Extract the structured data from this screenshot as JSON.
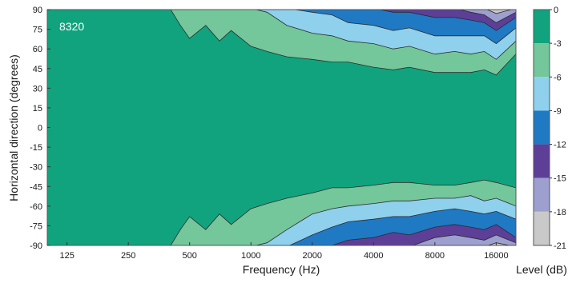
{
  "chart_data": {
    "type": "heatmap",
    "subtype": "filled-contour",
    "title": "",
    "inset_label": "8320",
    "xlabel": "Frequency (Hz)",
    "ylabel": "Horizontal direction (degrees)",
    "x_scale": "log",
    "xlim": [
      100,
      20000
    ],
    "ylim": [
      -90,
      90
    ],
    "x_ticks": [
      125,
      250,
      500,
      1000,
      2000,
      4000,
      8000,
      16000
    ],
    "x_tick_labels": [
      "125",
      "250",
      "500",
      "1000",
      "2000",
      "4000",
      "8000",
      "16000"
    ],
    "y_ticks": [
      -90,
      -75,
      -60,
      -45,
      -30,
      -15,
      0,
      15,
      30,
      45,
      60,
      75,
      90
    ],
    "y_tick_labels": [
      "-90",
      "-75",
      "-60",
      "-45",
      "-30",
      "-15",
      "0",
      "15",
      "30",
      "45",
      "60",
      "75",
      "90"
    ],
    "colorbar": {
      "label": "Level (dB)",
      "ticks": [
        0,
        -3,
        -6,
        -9,
        -12,
        -15,
        -18,
        -21
      ],
      "tick_labels": [
        "0",
        "-3",
        "-6",
        "-9",
        "-12",
        "-15",
        "-18",
        "-21"
      ],
      "levels": [
        {
          "range": "0 to -3",
          "color": "#11a37d"
        },
        {
          "range": "-3 to -6",
          "color": "#74c69b"
        },
        {
          "range": "-6 to -9",
          "color": "#8fd0ec"
        },
        {
          "range": "-9 to -12",
          "color": "#1f79c3"
        },
        {
          "range": "-12 to -15",
          "color": "#5d3f98"
        },
        {
          "range": "-15 to -18",
          "color": "#9d9fce"
        },
        {
          "range": "-18 to -21",
          "color": "#c9c9c9"
        }
      ]
    },
    "contours": {
      "frequencies": [
        100,
        400,
        450,
        500,
        600,
        700,
        800,
        1000,
        1200,
        1500,
        2000,
        2500,
        3000,
        4000,
        5000,
        6000,
        8000,
        10000,
        12000,
        14000,
        16000,
        20000
      ],
      "level_-3_upper": [
        91,
        91,
        78,
        68,
        78,
        66,
        74,
        62,
        58,
        54,
        52,
        50,
        50,
        46,
        44,
        46,
        42,
        42,
        42,
        44,
        40,
        56
      ],
      "level_-6_upper": [
        91,
        91,
        91,
        91,
        91,
        91,
        91,
        91,
        88,
        78,
        72,
        70,
        66,
        64,
        60,
        62,
        56,
        58,
        56,
        58,
        52,
        66
      ],
      "level_-9_upper": [
        91,
        91,
        91,
        91,
        91,
        91,
        91,
        91,
        91,
        91,
        88,
        86,
        80,
        78,
        74,
        76,
        70,
        70,
        70,
        70,
        64,
        76
      ],
      "level_-12_upper": [
        91,
        91,
        91,
        91,
        91,
        91,
        91,
        91,
        91,
        91,
        91,
        91,
        91,
        91,
        88,
        88,
        84,
        84,
        82,
        80,
        74,
        84
      ],
      "level_-15_upper": [
        91,
        91,
        91,
        91,
        91,
        91,
        91,
        91,
        91,
        91,
        91,
        91,
        91,
        91,
        91,
        91,
        91,
        91,
        88,
        86,
        80,
        88
      ],
      "level_-18_upper": [
        91,
        91,
        91,
        91,
        91,
        91,
        91,
        91,
        91,
        91,
        91,
        91,
        91,
        91,
        91,
        91,
        91,
        91,
        91,
        91,
        87,
        91
      ],
      "level_-3_lower": [
        -91,
        -91,
        -78,
        -68,
        -78,
        -66,
        -74,
        -62,
        -58,
        -54,
        -50,
        -46,
        -46,
        -44,
        -42,
        -42,
        -44,
        -44,
        -42,
        -40,
        -42,
        -46
      ],
      "level_-6_lower": [
        -91,
        -91,
        -91,
        -91,
        -91,
        -91,
        -91,
        -91,
        -88,
        -78,
        -66,
        -62,
        -60,
        -58,
        -56,
        -56,
        -54,
        -54,
        -52,
        -56,
        -54,
        -60
      ],
      "level_-9_lower": [
        -91,
        -91,
        -91,
        -91,
        -91,
        -91,
        -91,
        -91,
        -91,
        -91,
        -82,
        -76,
        -72,
        -70,
        -68,
        -68,
        -64,
        -62,
        -64,
        -66,
        -64,
        -70
      ],
      "level_-12_lower": [
        -91,
        -91,
        -91,
        -91,
        -91,
        -91,
        -91,
        -91,
        -91,
        -91,
        -91,
        -90,
        -86,
        -84,
        -80,
        -82,
        -76,
        -74,
        -76,
        -78,
        -74,
        -84
      ],
      "level_-15_lower": [
        -91,
        -91,
        -91,
        -91,
        -91,
        -91,
        -91,
        -91,
        -91,
        -91,
        -91,
        -91,
        -91,
        -91,
        -91,
        -91,
        -84,
        -82,
        -84,
        -86,
        -82,
        -88
      ],
      "level_-18_lower": [
        -91,
        -91,
        -91,
        -91,
        -91,
        -91,
        -91,
        -91,
        -91,
        -91,
        -91,
        -91,
        -91,
        -91,
        -91,
        -91,
        -91,
        -91,
        -91,
        -91,
        -88,
        -91
      ]
    }
  }
}
